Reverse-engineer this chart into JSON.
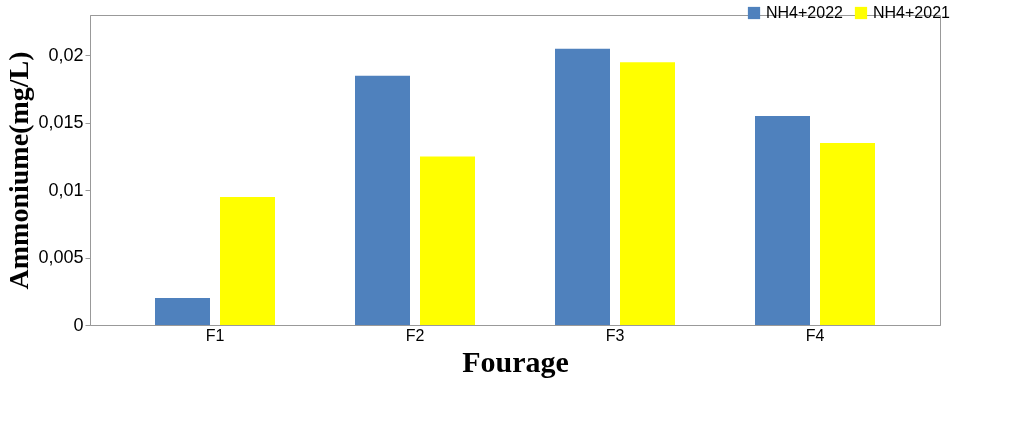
{
  "chart_data": {
    "type": "bar",
    "xlabel": "Fourage",
    "ylabel": "Ammoniume(mg/L)",
    "categories": [
      "F1",
      "F2",
      "F3",
      "F4"
    ],
    "series": [
      {
        "name": "NH4+2022",
        "color": "#4f81bd",
        "values": [
          0.002,
          0.0185,
          0.0205,
          0.0155
        ]
      },
      {
        "name": "NH4+2021",
        "color": "#ffff00",
        "values": [
          0.0095,
          0.0125,
          0.0195,
          0.0135
        ]
      }
    ],
    "ylim": [
      0,
      0.023
    ],
    "yticks": [
      0,
      {
        "value": 0.005,
        "label": "0,005"
      },
      {
        "value": 0.01,
        "label": "0,01"
      },
      {
        "value": 0.015,
        "label": "0,015"
      },
      {
        "value": 0.02,
        "label": "0,02"
      }
    ],
    "grid": false,
    "legend": "top right"
  }
}
